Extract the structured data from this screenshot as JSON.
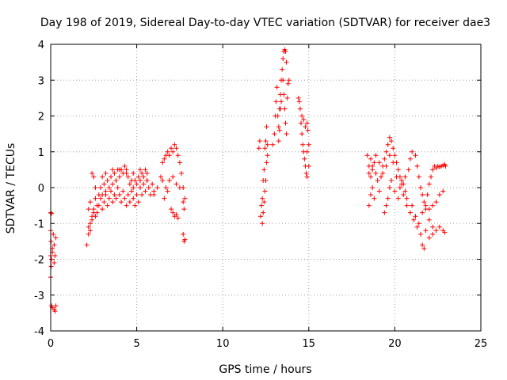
{
  "chart_data": {
    "type": "scatter",
    "title": "Day 198 of 2019, Sidereal Day-to-day VTEC variation (SDTVAR) for receiver dae3",
    "xlabel": "GPS time / hours",
    "ylabel": "SDTVAR / TECUs",
    "xlim": [
      0,
      25
    ],
    "ylim": [
      -4,
      4
    ],
    "xticks": [
      0,
      5,
      10,
      15,
      20,
      25
    ],
    "yticks": [
      -4,
      -3,
      -2,
      -1,
      0,
      1,
      2,
      3,
      4
    ],
    "xtick_labels": [
      "0",
      "5",
      "10",
      "15",
      "20",
      "25"
    ],
    "ytick_labels": [
      "-4",
      "-3",
      "-2",
      "-1",
      "0",
      "1",
      "2",
      "3",
      "4"
    ],
    "grid": true,
    "marker": "+",
    "series_color": "#ff0000",
    "series": [
      {
        "name": "SDTVAR",
        "points": [
          [
            0.0,
            -0.7
          ],
          [
            0.05,
            -0.72
          ],
          [
            0.0,
            -1.2
          ],
          [
            0.02,
            -1.5
          ],
          [
            0.0,
            -1.9
          ],
          [
            0.03,
            -2.2
          ],
          [
            0.0,
            -2.5
          ],
          [
            0.05,
            -2.0
          ],
          [
            0.1,
            -1.7
          ],
          [
            0.15,
            -1.3
          ],
          [
            0.2,
            -1.6
          ],
          [
            0.25,
            -1.9
          ],
          [
            0.2,
            -2.1
          ],
          [
            0.1,
            -1.8
          ],
          [
            0.3,
            -1.4
          ],
          [
            0.05,
            -3.3
          ],
          [
            0.1,
            -3.35
          ],
          [
            0.2,
            -3.4
          ],
          [
            0.3,
            -3.3
          ],
          [
            0.25,
            -3.45
          ],
          [
            2.1,
            -1.6
          ],
          [
            2.2,
            -1.3
          ],
          [
            2.3,
            -1.0
          ],
          [
            2.4,
            -0.8
          ],
          [
            2.5,
            -0.6
          ],
          [
            2.6,
            -0.3
          ],
          [
            2.7,
            -0.5
          ],
          [
            2.8,
            -0.2
          ],
          [
            2.9,
            0.0
          ],
          [
            3.0,
            -0.2
          ],
          [
            3.1,
            0.1
          ],
          [
            3.2,
            -0.1
          ],
          [
            3.3,
            0.2
          ],
          [
            3.4,
            0.0
          ],
          [
            3.5,
            0.3
          ],
          [
            3.6,
            0.1
          ],
          [
            3.7,
            0.4
          ],
          [
            3.8,
            0.2
          ],
          [
            3.9,
            0.5
          ],
          [
            4.0,
            0.3
          ],
          [
            4.1,
            0.5
          ],
          [
            4.2,
            0.4
          ],
          [
            4.3,
            0.6
          ],
          [
            4.4,
            0.4
          ],
          [
            4.5,
            0.3
          ],
          [
            4.6,
            0.1
          ],
          [
            4.7,
            0.2
          ],
          [
            4.8,
            0.0
          ],
          [
            4.9,
            0.2
          ],
          [
            5.0,
            0.1
          ],
          [
            5.1,
            0.3
          ],
          [
            5.2,
            0.2
          ],
          [
            5.3,
            0.4
          ],
          [
            5.4,
            0.3
          ],
          [
            5.5,
            0.5
          ],
          [
            5.6,
            0.2
          ],
          [
            2.2,
            -0.6
          ],
          [
            2.3,
            -0.4
          ],
          [
            2.4,
            0.4
          ],
          [
            2.5,
            0.3
          ],
          [
            2.6,
            0.0
          ],
          [
            2.7,
            -0.7
          ],
          [
            2.8,
            -0.5
          ],
          [
            2.9,
            -0.3
          ],
          [
            3.0,
            -0.6
          ],
          [
            3.1,
            -0.4
          ],
          [
            3.2,
            -0.2
          ],
          [
            3.3,
            -0.5
          ],
          [
            3.4,
            -0.3
          ],
          [
            3.5,
            -0.1
          ],
          [
            3.6,
            -0.4
          ],
          [
            3.7,
            -0.2
          ],
          [
            3.8,
            -0.3
          ],
          [
            3.9,
            0.0
          ],
          [
            4.0,
            -0.2
          ],
          [
            4.1,
            -0.4
          ],
          [
            4.2,
            -0.1
          ],
          [
            4.3,
            -0.3
          ],
          [
            4.4,
            -0.5
          ],
          [
            4.5,
            -0.2
          ],
          [
            4.6,
            -0.4
          ],
          [
            4.7,
            -0.1
          ],
          [
            4.8,
            -0.3
          ],
          [
            4.9,
            -0.5
          ],
          [
            5.0,
            -0.2
          ],
          [
            5.1,
            -0.4
          ],
          [
            5.2,
            0.0
          ],
          [
            5.3,
            -0.2
          ],
          [
            5.4,
            0.1
          ],
          [
            5.5,
            -0.1
          ],
          [
            5.6,
            0.2
          ],
          [
            5.7,
            0.0
          ],
          [
            5.8,
            -0.2
          ],
          [
            5.9,
            0.1
          ],
          [
            6.0,
            -0.1
          ],
          [
            2.2,
            -1.1
          ],
          [
            2.3,
            -1.2
          ],
          [
            2.4,
            -0.9
          ],
          [
            2.5,
            -0.7
          ],
          [
            2.6,
            -0.8
          ],
          [
            3.0,
            0.3
          ],
          [
            3.2,
            0.4
          ],
          [
            3.6,
            0.5
          ],
          [
            4.0,
            0.5
          ],
          [
            4.4,
            0.5
          ],
          [
            4.8,
            0.4
          ],
          [
            5.2,
            0.5
          ],
          [
            5.6,
            0.4
          ],
          [
            6.0,
            -0.2
          ],
          [
            6.2,
            0.0
          ],
          [
            6.4,
            0.3
          ],
          [
            6.5,
            0.7
          ],
          [
            6.6,
            0.8
          ],
          [
            6.7,
            0.9
          ],
          [
            6.8,
            1.0
          ],
          [
            6.9,
            0.9
          ],
          [
            7.0,
            1.1
          ],
          [
            7.1,
            1.0
          ],
          [
            7.2,
            1.2
          ],
          [
            7.3,
            1.1
          ],
          [
            7.4,
            0.9
          ],
          [
            7.5,
            0.7
          ],
          [
            6.5,
            0.2
          ],
          [
            6.7,
            0.0
          ],
          [
            6.9,
            0.2
          ],
          [
            7.1,
            0.3
          ],
          [
            7.3,
            0.1
          ],
          [
            7.5,
            0.0
          ],
          [
            6.6,
            -0.3
          ],
          [
            6.8,
            -0.1
          ],
          [
            7.0,
            -0.6
          ],
          [
            7.1,
            -0.7
          ],
          [
            7.2,
            -0.8
          ],
          [
            7.3,
            -0.75
          ],
          [
            7.4,
            -0.85
          ],
          [
            7.6,
            0.4
          ],
          [
            7.7,
            0.0
          ],
          [
            7.7,
            -0.4
          ],
          [
            7.75,
            -0.6
          ],
          [
            7.8,
            -0.3
          ],
          [
            7.7,
            -1.3
          ],
          [
            7.75,
            -1.5
          ],
          [
            7.8,
            -1.45
          ],
          [
            12.1,
            1.1
          ],
          [
            12.15,
            1.3
          ],
          [
            12.2,
            -0.8
          ],
          [
            12.25,
            -0.5
          ],
          [
            12.3,
            -0.3
          ],
          [
            12.35,
            0.2
          ],
          [
            12.4,
            0.5
          ],
          [
            12.45,
            1.1
          ],
          [
            12.5,
            1.3
          ],
          [
            12.55,
            1.7
          ],
          [
            12.6,
            1.2
          ],
          [
            12.3,
            -1.0
          ],
          [
            12.35,
            -0.7
          ],
          [
            12.4,
            -0.4
          ],
          [
            12.45,
            -0.1
          ],
          [
            12.5,
            0.2
          ],
          [
            12.55,
            0.7
          ],
          [
            12.6,
            0.9
          ],
          [
            12.9,
            1.2
          ],
          [
            13.0,
            1.5
          ],
          [
            13.05,
            2.0
          ],
          [
            13.1,
            2.4
          ],
          [
            13.15,
            2.8
          ],
          [
            13.2,
            2.0
          ],
          [
            13.25,
            1.7
          ],
          [
            13.3,
            2.2
          ],
          [
            13.35,
            2.6
          ],
          [
            13.4,
            3.0
          ],
          [
            13.45,
            3.3
          ],
          [
            13.5,
            3.6
          ],
          [
            13.55,
            3.8
          ],
          [
            13.6,
            3.85
          ],
          [
            13.65,
            3.8
          ],
          [
            13.7,
            3.5
          ],
          [
            13.5,
            3.0
          ],
          [
            13.55,
            2.6
          ],
          [
            13.6,
            2.2
          ],
          [
            13.65,
            1.8
          ],
          [
            13.7,
            1.5
          ],
          [
            13.75,
            2.5
          ],
          [
            13.8,
            2.9
          ],
          [
            13.85,
            3.0
          ],
          [
            13.4,
            2.4
          ],
          [
            13.35,
            2.2
          ],
          [
            13.3,
            1.6
          ],
          [
            13.25,
            1.3
          ],
          [
            14.4,
            2.5
          ],
          [
            14.45,
            2.4
          ],
          [
            14.5,
            2.2
          ],
          [
            14.55,
            1.8
          ],
          [
            14.6,
            1.5
          ],
          [
            14.65,
            1.2
          ],
          [
            14.7,
            1.0
          ],
          [
            14.75,
            0.8
          ],
          [
            14.8,
            0.6
          ],
          [
            14.85,
            0.4
          ],
          [
            14.9,
            1.8
          ],
          [
            14.95,
            1.6
          ],
          [
            15.0,
            1.2
          ],
          [
            14.6,
            2.0
          ],
          [
            14.7,
            1.9
          ],
          [
            14.8,
            1.7
          ],
          [
            14.9,
            1.0
          ],
          [
            15.0,
            0.6
          ],
          [
            14.9,
            0.3
          ],
          [
            18.4,
            0.9
          ],
          [
            18.5,
            0.6
          ],
          [
            18.6,
            0.3
          ],
          [
            18.7,
            0.0
          ],
          [
            18.8,
            -0.3
          ],
          [
            18.5,
            -0.5
          ],
          [
            18.6,
            -0.2
          ],
          [
            18.7,
            0.5
          ],
          [
            18.8,
            0.7
          ],
          [
            18.9,
            0.4
          ],
          [
            19.0,
            0.2
          ],
          [
            19.1,
            -0.1
          ],
          [
            19.2,
            0.3
          ],
          [
            19.3,
            0.6
          ],
          [
            19.4,
            0.8
          ],
          [
            19.5,
            1.0
          ],
          [
            19.6,
            1.2
          ],
          [
            19.7,
            1.4
          ],
          [
            19.8,
            1.3
          ],
          [
            19.9,
            1.1
          ],
          [
            20.0,
            0.9
          ],
          [
            20.1,
            0.7
          ],
          [
            20.2,
            0.5
          ],
          [
            20.3,
            0.3
          ],
          [
            20.4,
            0.2
          ],
          [
            20.5,
            0.1
          ],
          [
            20.6,
            -0.1
          ],
          [
            20.7,
            -0.3
          ],
          [
            18.5,
            0.4
          ],
          [
            18.6,
            0.8
          ],
          [
            18.7,
            0.6
          ],
          [
            18.9,
            0.9
          ],
          [
            19.1,
            0.7
          ],
          [
            19.3,
            0.4
          ],
          [
            19.5,
            0.6
          ],
          [
            19.7,
            0.9
          ],
          [
            19.9,
            0.7
          ],
          [
            20.1,
            0.3
          ],
          [
            20.3,
            0.0
          ],
          [
            20.5,
            -0.2
          ],
          [
            20.7,
            -0.5
          ],
          [
            20.9,
            -0.7
          ],
          [
            21.1,
            -0.9
          ],
          [
            21.3,
            -1.1
          ],
          [
            21.5,
            -1.3
          ],
          [
            21.6,
            -1.6
          ],
          [
            21.7,
            -1.7
          ],
          [
            19.4,
            -0.7
          ],
          [
            19.5,
            -0.5
          ],
          [
            19.6,
            -0.3
          ],
          [
            19.7,
            0.0
          ],
          [
            19.8,
            0.2
          ],
          [
            20.0,
            -0.1
          ],
          [
            20.2,
            -0.3
          ],
          [
            20.4,
            0.1
          ],
          [
            20.6,
            0.3
          ],
          [
            20.8,
            0.5
          ],
          [
            20.9,
            0.8
          ],
          [
            21.0,
            1.0
          ],
          [
            21.2,
            0.9
          ],
          [
            21.3,
            0.6
          ],
          [
            21.4,
            0.3
          ],
          [
            21.5,
            0.0
          ],
          [
            21.6,
            -0.2
          ],
          [
            21.7,
            -0.4
          ],
          [
            21.8,
            -0.5
          ],
          [
            22.0,
            -0.6
          ],
          [
            22.2,
            -0.5
          ],
          [
            22.4,
            -0.4
          ],
          [
            22.6,
            -0.2
          ],
          [
            22.8,
            -0.1
          ],
          [
            21.0,
            -0.5
          ],
          [
            21.2,
            -0.8
          ],
          [
            21.4,
            -1.0
          ],
          [
            21.6,
            -0.7
          ],
          [
            21.8,
            -0.6
          ],
          [
            22.0,
            -0.9
          ],
          [
            22.2,
            -1.1
          ],
          [
            22.4,
            -1.2
          ],
          [
            22.6,
            -1.1
          ],
          [
            22.8,
            -1.2
          ],
          [
            22.9,
            -1.25
          ],
          [
            21.8,
            -1.2
          ],
          [
            22.0,
            -1.4
          ],
          [
            22.2,
            -1.3
          ],
          [
            21.9,
            -0.2
          ],
          [
            22.0,
            0.1
          ],
          [
            22.1,
            0.3
          ],
          [
            22.2,
            0.5
          ],
          [
            22.3,
            0.6
          ],
          [
            22.4,
            0.55
          ],
          [
            22.5,
            0.6
          ],
          [
            22.6,
            0.58
          ],
          [
            22.7,
            0.6
          ],
          [
            22.8,
            0.62
          ],
          [
            22.9,
            0.65
          ],
          [
            22.95,
            0.6
          ]
        ]
      }
    ]
  }
}
